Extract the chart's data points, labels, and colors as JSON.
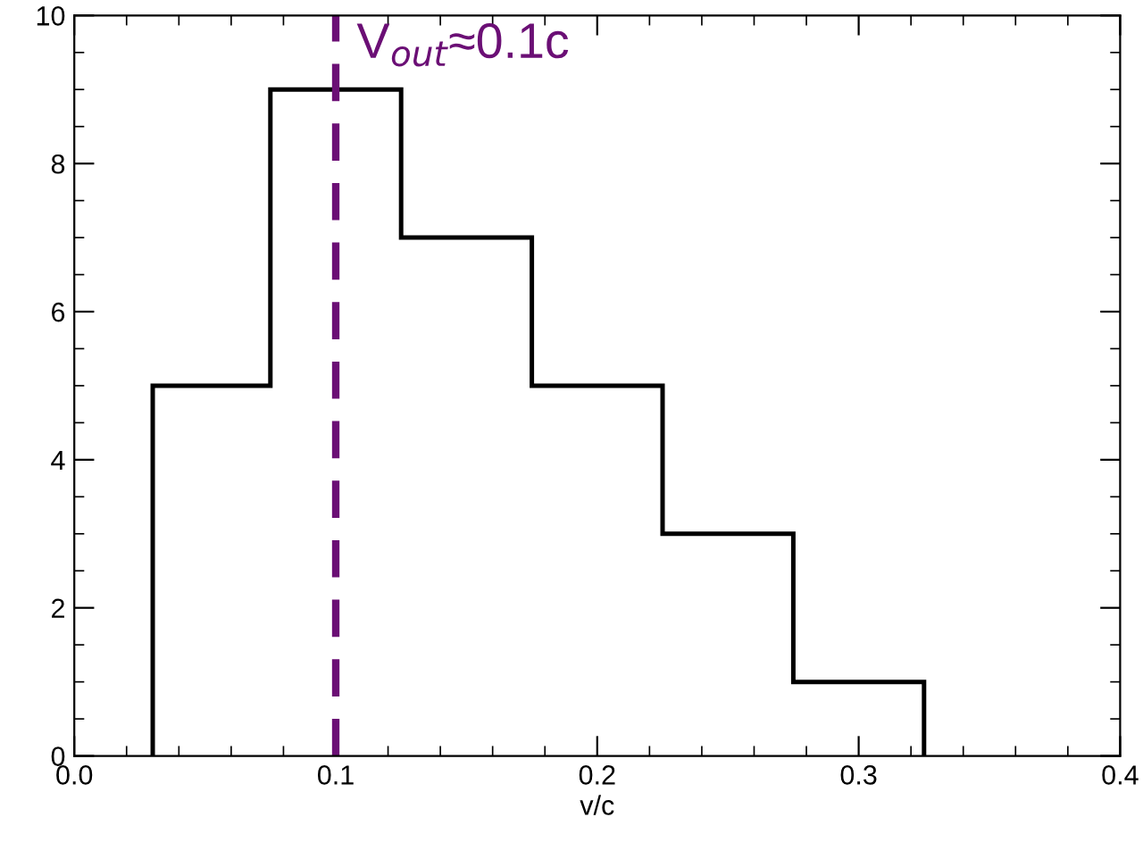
{
  "chart_data": {
    "type": "histogram",
    "xlabel": "v/c",
    "bins": [
      0.03,
      0.075,
      0.125,
      0.175,
      0.225,
      0.275,
      0.325
    ],
    "values": [
      5,
      9,
      7,
      5,
      3,
      1
    ],
    "color": "#000000",
    "xlim": [
      0.0,
      0.4
    ],
    "xticks": [
      {
        "value": 0.0,
        "label": "0.0"
      },
      {
        "value": 0.1,
        "label": "0.1"
      },
      {
        "value": 0.2,
        "label": "0.2"
      },
      {
        "value": 0.3,
        "label": "0.3"
      },
      {
        "value": 0.4,
        "label": "0.4"
      }
    ],
    "ylim": [
      0,
      10
    ],
    "yticks": [
      0,
      2,
      4,
      6,
      8,
      10
    ],
    "grid": false,
    "ref_lines": [
      {
        "axis": "x",
        "value": 0.1,
        "label": "V$_{out}$≈0.1c",
        "color": "#6b0f75",
        "line_style": "dashed"
      }
    ]
  }
}
